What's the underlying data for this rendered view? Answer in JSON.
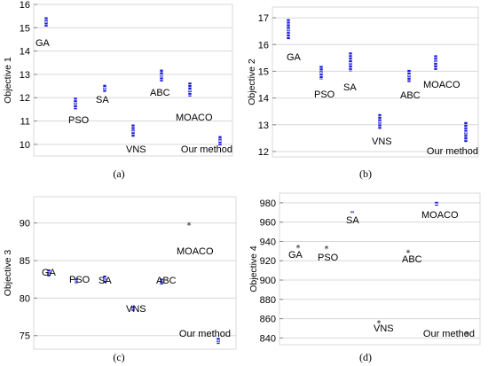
{
  "chart_data": [
    {
      "type": "scatter",
      "panel_caption": "(a)",
      "ylabel": "Objective 1",
      "ylim": [
        9.5,
        16
      ],
      "yticks": [
        10,
        11,
        12,
        13,
        14,
        15,
        16
      ],
      "grid": true,
      "marker": "bar",
      "color": "#1a1adc",
      "categories": [
        "GA",
        "PSO",
        "SA",
        "VNS",
        "ABC",
        "MOACO",
        "Our method"
      ],
      "ranges": [
        [
          15.05,
          15.45
        ],
        [
          11.5,
          12.0
        ],
        [
          12.25,
          12.55
        ],
        [
          10.3,
          10.85
        ],
        [
          12.7,
          13.2
        ],
        [
          12.05,
          12.65
        ],
        [
          9.95,
          10.35
        ]
      ],
      "values": [
        15.25,
        11.75,
        12.4,
        10.55,
        12.95,
        12.3,
        10.15
      ]
    },
    {
      "type": "scatter",
      "panel_caption": "(b)",
      "ylabel": "Objective 2",
      "ylim": [
        11.8,
        17.4
      ],
      "yticks": [
        12,
        13,
        14,
        15,
        16,
        17
      ],
      "grid": true,
      "marker": "bar",
      "color": "#1a1adc",
      "categories": [
        "GA",
        "PSO",
        "SA",
        "VNS",
        "ABC",
        "MOACO",
        "Our method"
      ],
      "ranges": [
        [
          16.2,
          16.95
        ],
        [
          14.7,
          15.2
        ],
        [
          15.0,
          15.7
        ],
        [
          12.85,
          13.4
        ],
        [
          14.6,
          15.05
        ],
        [
          15.05,
          15.6
        ],
        [
          12.35,
          13.1
        ]
      ],
      "values": [
        16.55,
        14.95,
        15.3,
        13.1,
        14.85,
        15.35,
        12.7
      ]
    },
    {
      "type": "scatter",
      "panel_caption": "(c)",
      "ylabel": "Objective 3",
      "ylim": [
        73.2,
        93.5
      ],
      "yticks": [
        75,
        80,
        85,
        90
      ],
      "grid": true,
      "marker": "bar",
      "color": "#1a1adc",
      "categories": [
        "GA",
        "PSO",
        "SA",
        "VNS",
        "ABC",
        "MOACO",
        "Our method"
      ],
      "ranges": [
        [
          82.9,
          83.8
        ],
        [
          81.9,
          82.6
        ],
        [
          82.0,
          83.0
        ],
        [
          78.2,
          78.9
        ],
        [
          81.8,
          82.6
        ],
        [
          89.8,
          89.8
        ],
        [
          73.9,
          74.7
        ]
      ],
      "values": [
        83.3,
        82.2,
        82.5,
        78.6,
        82.2,
        89.8,
        74.3
      ]
    },
    {
      "type": "scatter",
      "panel_caption": "(d)",
      "ylabel": "Objective 4",
      "ylim": [
        833,
        990
      ],
      "yticks": [
        840,
        860,
        880,
        900,
        920,
        940,
        960,
        980
      ],
      "grid": true,
      "marker": "bar",
      "color": "#1a1adc",
      "categories": [
        "GA",
        "PSO",
        "SA",
        "VNS",
        "ABC",
        "MOACO",
        "Our method"
      ],
      "ranges": [
        [
          934,
          934
        ],
        [
          933,
          933
        ],
        [
          969.5,
          971.5
        ],
        [
          856,
          856
        ],
        [
          929,
          929
        ],
        [
          977,
          981
        ],
        [
          844,
          844
        ]
      ],
      "values": [
        934,
        933,
        970.5,
        856,
        929,
        979,
        844
      ]
    }
  ]
}
